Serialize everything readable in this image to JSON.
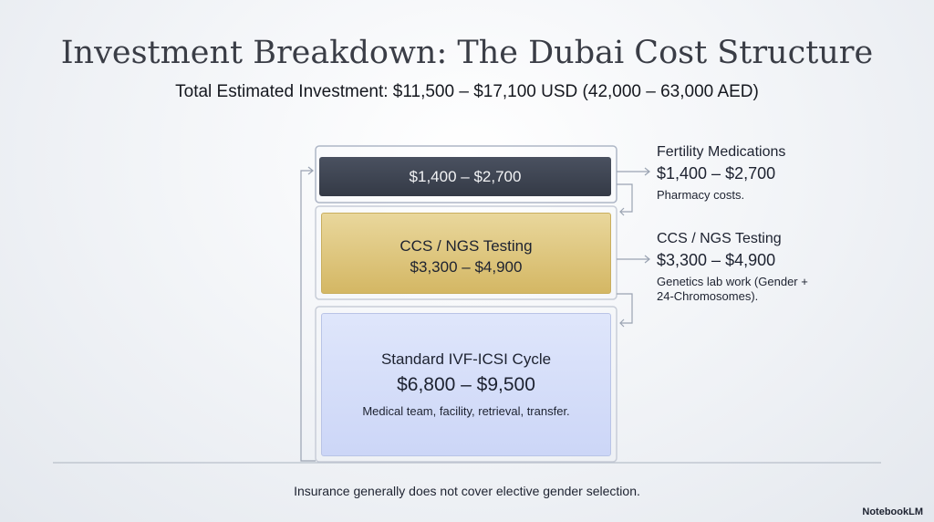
{
  "header": {
    "title": "Investment Breakdown: The Dubai Cost Structure",
    "subtitle": "Total Estimated Investment: $11,500 – $17,100 USD (42,000 – 63,000 AED)"
  },
  "stack": [
    {
      "amount": "$1,400 – $2,700"
    },
    {
      "title": "CCS / NGS Testing",
      "amount": "$3,300 – $4,900"
    },
    {
      "title": "Standard IVF-ICSI Cycle",
      "amount": "$6,800 – $9,500",
      "note": "Medical team, facility, retrieval, transfer."
    }
  ],
  "callouts": [
    {
      "title": "Fertility Medications",
      "amount": "$1,400 – $2,700",
      "note": "Pharmacy costs."
    },
    {
      "title": "CCS / NGS Testing",
      "amount": "$3,300 – $4,900",
      "note": "Genetics lab work (Gender + 24-Chromosomes)."
    }
  ],
  "footer": {
    "note": "Insurance generally does not cover elective gender selection.",
    "brand": "NotebookLM"
  }
}
